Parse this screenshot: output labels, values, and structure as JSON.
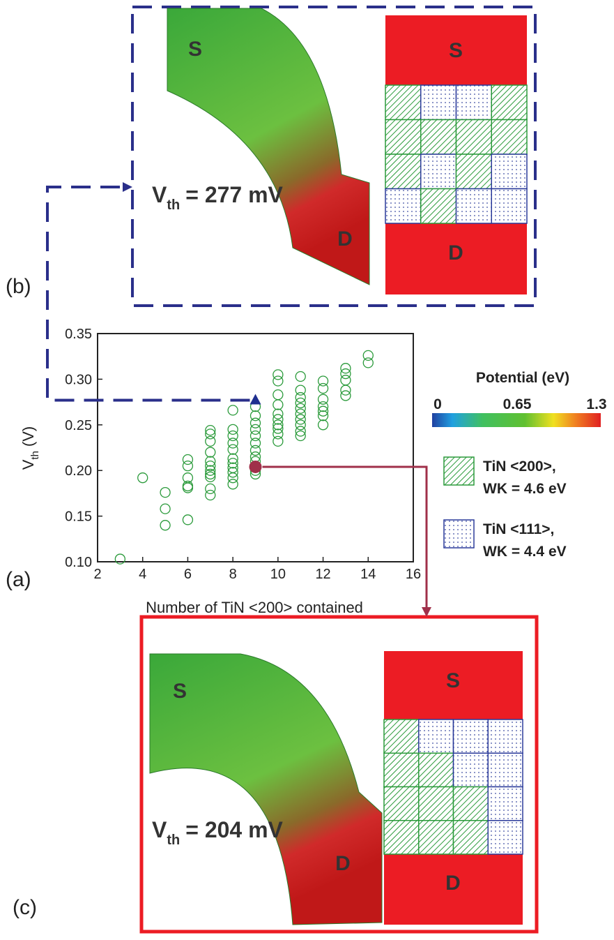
{
  "chart_data": {
    "type": "scatter",
    "panel_label": "(a)",
    "xlabel": "Number of TiN <200> contained",
    "ylabel": {
      "symbol": "V",
      "subscript": "th",
      "unit": "(V)"
    },
    "xlim": [
      2,
      16
    ],
    "xticks": [
      2,
      4,
      6,
      8,
      10,
      12,
      14,
      16
    ],
    "ylim": [
      0.1,
      0.35
    ],
    "yticks": [
      {
        "value": 0.1,
        "label": "0.10"
      },
      0.15,
      {
        "value": 0.2,
        "label": "0.20"
      },
      0.25,
      {
        "value": 0.3,
        "label": "0.30"
      },
      0.35
    ],
    "series": [
      {
        "color": "#2a9a3a",
        "marker": "open-circle",
        "x": [
          3,
          4,
          5,
          5,
          5,
          6,
          6,
          6,
          6,
          6,
          6,
          7,
          7,
          7,
          7,
          7,
          7,
          7,
          7,
          7,
          7,
          7,
          8,
          8,
          8,
          8,
          8,
          8,
          8,
          8,
          8,
          8,
          8,
          9,
          9,
          9,
          9,
          9,
          9,
          9,
          9,
          9,
          9,
          9,
          10,
          10,
          10,
          10,
          10,
          10,
          10,
          10,
          10,
          10,
          11,
          11,
          11,
          11,
          11,
          11,
          11,
          11,
          11,
          11,
          12,
          12,
          12,
          12,
          12,
          12,
          12,
          13,
          13,
          13,
          13,
          13,
          14,
          14
        ],
        "y": [
          0.103,
          0.192,
          0.176,
          0.158,
          0.14,
          0.212,
          0.205,
          0.192,
          0.183,
          0.181,
          0.146,
          0.244,
          0.24,
          0.232,
          0.22,
          0.21,
          0.205,
          0.2,
          0.196,
          0.193,
          0.18,
          0.173,
          0.266,
          0.245,
          0.238,
          0.23,
          0.223,
          0.213,
          0.208,
          0.203,
          0.198,
          0.192,
          0.185,
          0.27,
          0.26,
          0.252,
          0.245,
          0.238,
          0.23,
          0.222,
          0.215,
          0.21,
          0.2,
          0.196,
          0.305,
          0.298,
          0.283,
          0.272,
          0.262,
          0.256,
          0.25,
          0.246,
          0.24,
          0.232,
          0.303,
          0.288,
          0.28,
          0.274,
          0.268,
          0.262,
          0.256,
          0.25,
          0.243,
          0.238,
          0.298,
          0.29,
          0.278,
          0.27,
          0.265,
          0.26,
          0.25,
          0.312,
          0.306,
          0.299,
          0.288,
          0.282,
          0.326,
          0.318
        ]
      },
      {
        "color": "#1f2f8f",
        "marker": "triangle",
        "x": [
          9
        ],
        "y": [
          0.277
        ]
      },
      {
        "color": "#a0304a",
        "marker": "filled-circle",
        "x": [
          9
        ],
        "y": [
          0.204
        ]
      }
    ],
    "colorbar": {
      "title": "Potential (eV)",
      "lim": [
        0,
        1.3
      ],
      "ticks": [
        0,
        0.65,
        1.3
      ]
    },
    "legend": [
      {
        "lines": [
          "TiN <200>,",
          "WK = 4.6 eV"
        ],
        "pattern": 200
      },
      {
        "lines": [
          "TiN <111>,",
          "WK = 4.4 eV"
        ],
        "pattern": 111
      }
    ]
  },
  "panel_b": {
    "label": "(b)",
    "source": "S",
    "drain": "D",
    "vth": {
      "symbol": "V",
      "subscript": "th",
      "text": "= 277 mV"
    },
    "grid": [
      [
        200,
        111,
        111,
        200
      ],
      [
        200,
        200,
        200,
        200
      ],
      [
        200,
        111,
        200,
        111
      ],
      [
        111,
        200,
        111,
        111
      ]
    ]
  },
  "panel_c": {
    "label": "(c)",
    "source": "S",
    "drain": "D",
    "vth": {
      "symbol": "V",
      "subscript": "th",
      "text": "= 204 mV"
    },
    "grid": [
      [
        200,
        111,
        111,
        111
      ],
      [
        200,
        200,
        111,
        111
      ],
      [
        200,
        200,
        200,
        111
      ],
      [
        200,
        200,
        200,
        111
      ]
    ]
  }
}
